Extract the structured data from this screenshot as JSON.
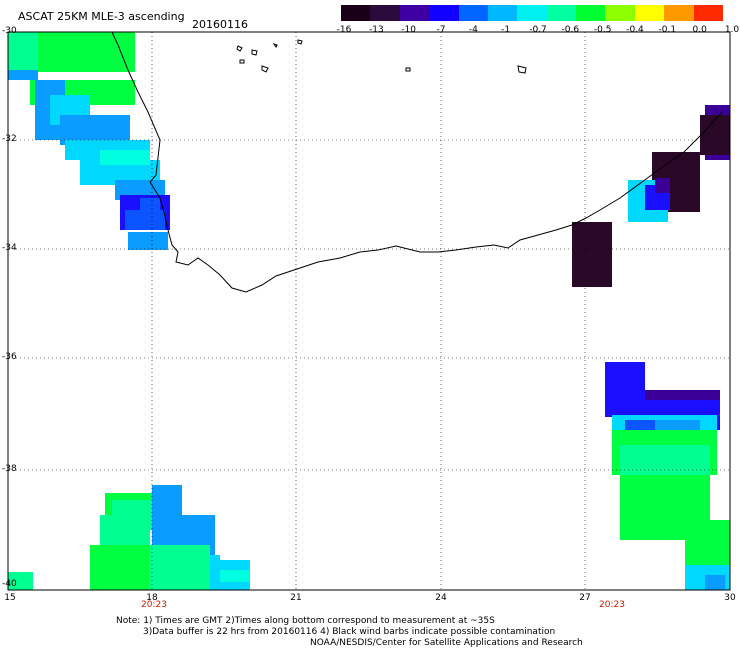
{
  "header": {
    "title": "ASCAT 25KM MLE-3 ascending",
    "date": "20160116"
  },
  "legend": {
    "labels": [
      "-16",
      "-13",
      "-10",
      "-7",
      "-4",
      "-1",
      "-0.7",
      "-0.6",
      "-0.5",
      "-0.4",
      "-0.1",
      "0.0",
      "1.0"
    ],
    "colors": [
      "#1a0016",
      "#2b0b3c",
      "#3e00a3",
      "#1100ff",
      "#0066ff",
      "#00b8ff",
      "#00f0f0",
      "#00ffa0",
      "#00ff30",
      "#8cff00",
      "#ffff00",
      "#ff9900",
      "#ff2a00"
    ]
  },
  "axes": {
    "lat_labels": [
      "-30",
      "-32",
      "-34",
      "-36",
      "-38",
      "-40"
    ],
    "lon_labels": [
      "15",
      "18",
      "21",
      "24",
      "27",
      "30"
    ],
    "time_labels": [
      "20:23",
      "20:23"
    ],
    "grid": "dotted"
  },
  "notes": [
    "Note: 1) Times are GMT 2)Times along bottom correspond to measurement at ~35S",
    "3)Data buffer is 22 hrs from 20160116 4) Black wind barbs indicate possible contamination",
    "NOAA/NESDIS/Center for Satellite Applications and Research"
  ]
}
